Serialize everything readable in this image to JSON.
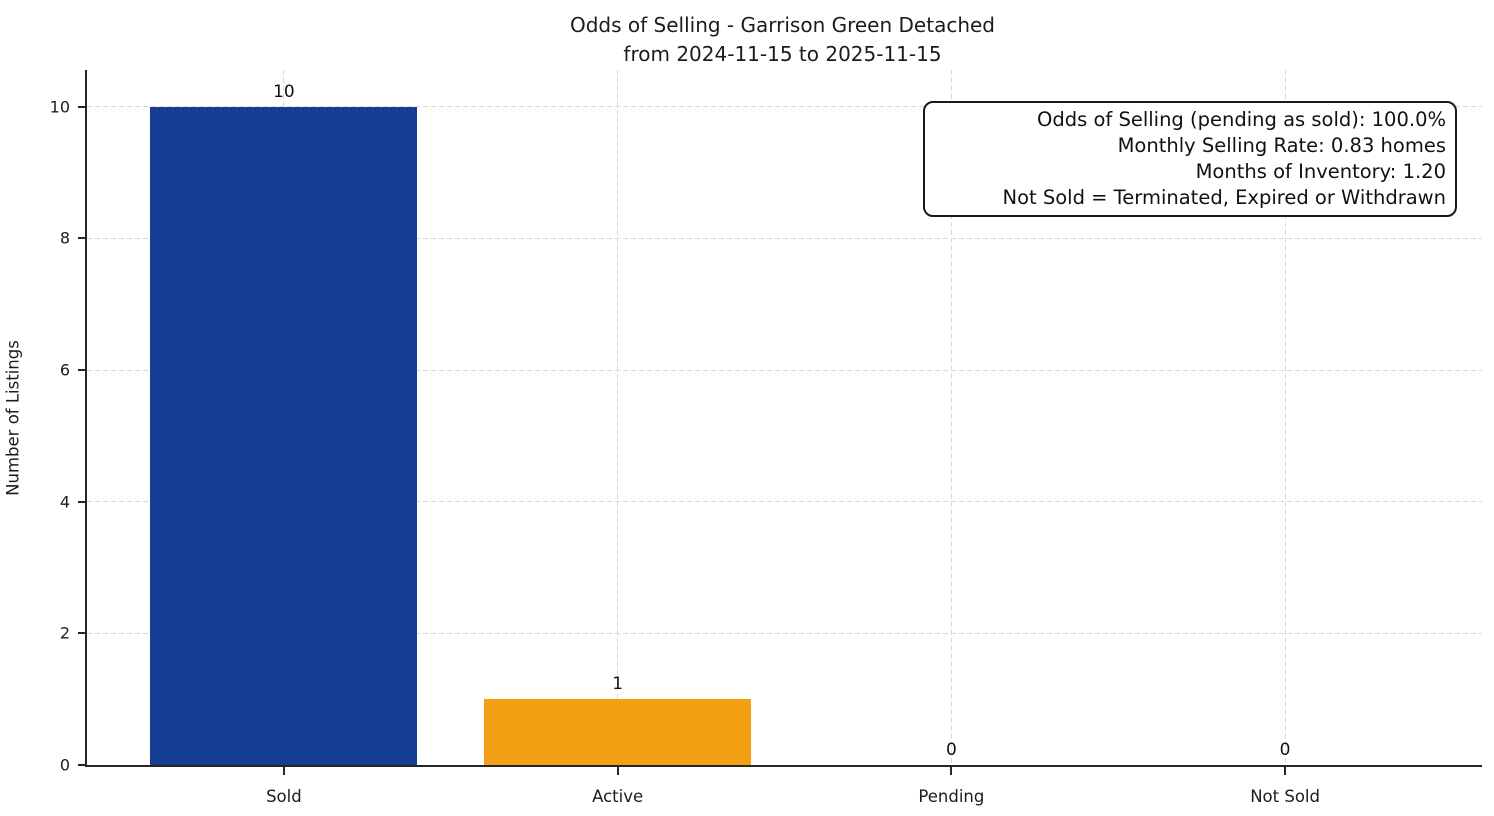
{
  "title": "Odds of Selling - Garrison Green Detached",
  "subtitle": "from 2024-11-15 to 2025-11-15",
  "annotation": {
    "lines": [
      "Odds of Selling (pending as sold): 100.0%",
      "Monthly Selling Rate: 0.83 homes",
      "Months of Inventory: 1.20",
      "Not Sold = Terminated, Expired or Withdrawn"
    ]
  },
  "chart_data": {
    "type": "bar",
    "title": "Odds of Selling - Garrison Green Detached",
    "subtitle": "from 2024-11-15 to 2025-11-15",
    "categories": [
      "Sold",
      "Active",
      "Pending",
      "Not Sold"
    ],
    "values": [
      10,
      1,
      0,
      0
    ],
    "bar_colors": [
      "#163D94",
      "#F39F13",
      null,
      null
    ],
    "bar_width": 0.8,
    "xlabel": "",
    "ylabel": "Number of Listings",
    "xlim": [
      -0.59,
      3.59
    ],
    "ylim": [
      0,
      10.56
    ],
    "yticks": [
      0,
      2,
      4,
      6,
      8,
      10
    ],
    "grid": "both, dashed, light-gray",
    "legend": "none",
    "value_labels": true
  },
  "colors": {
    "bar_sold": "#163D94",
    "bar_active": "#F39F13",
    "axis": "#262626",
    "grid": "#d9d9d9",
    "text": "#1c1c1c",
    "background": "#ffffff"
  }
}
